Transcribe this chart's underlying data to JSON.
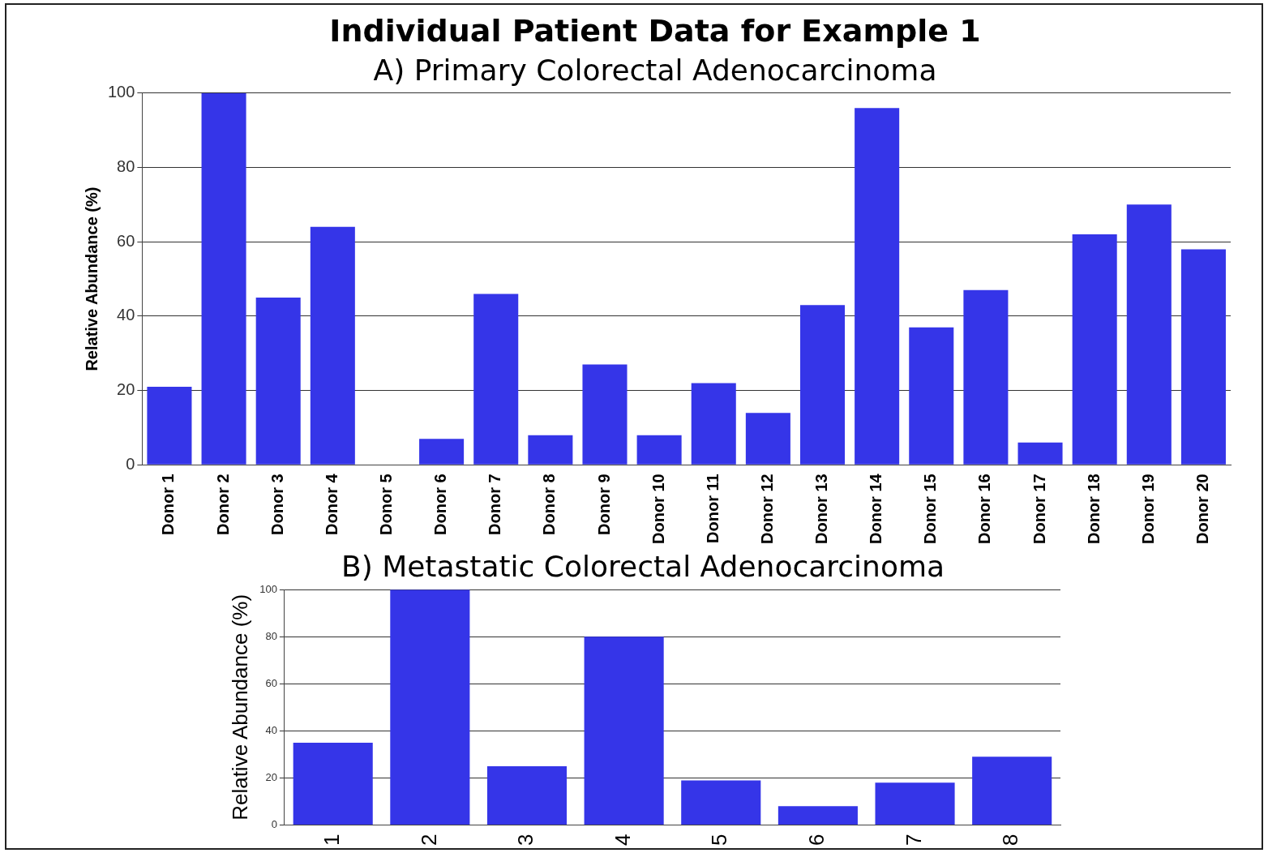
{
  "chart_data": [
    {
      "type": "bar",
      "title": "Individual Patient Data for Example 1",
      "subtitle": "A) Primary Colorectal Adenocarcinoma",
      "ylabel": "Relative Abundance (%)",
      "categories": [
        "Donor 1",
        "Donor 2",
        "Donor 3",
        "Donor 4",
        "Donor 5",
        "Donor 6",
        "Donor 7",
        "Donor 8",
        "Donor 9",
        "Donor 10",
        "Donor 11",
        "Donor 12",
        "Donor 13",
        "Donor 14",
        "Donor 15",
        "Donor 16",
        "Donor 17",
        "Donor 18",
        "Donor 19",
        "Donor 20"
      ],
      "values": [
        21,
        100,
        45,
        64,
        0,
        7,
        46,
        8,
        27,
        8,
        22,
        14,
        43,
        96,
        37,
        47,
        6,
        62,
        70,
        58
      ],
      "color": "#3535e8",
      "ylim": [
        0,
        100
      ],
      "yticks": [
        0,
        20,
        40,
        60,
        80,
        100
      ],
      "grid": "y",
      "legend": false
    },
    {
      "type": "bar",
      "title": "B) Metastatic Colorectal Adenocarcinoma",
      "ylabel": "Relative Abundance (%)",
      "categories": [
        "1",
        "2",
        "3",
        "4",
        "5",
        "6",
        "7",
        "8"
      ],
      "values": [
        35,
        100,
        25,
        80,
        19,
        8,
        18,
        29
      ],
      "color": "#3535e8",
      "ylim": [
        0,
        100
      ],
      "yticks": [
        0,
        20,
        40,
        60,
        80,
        100
      ],
      "grid": "y",
      "legend": false
    }
  ]
}
